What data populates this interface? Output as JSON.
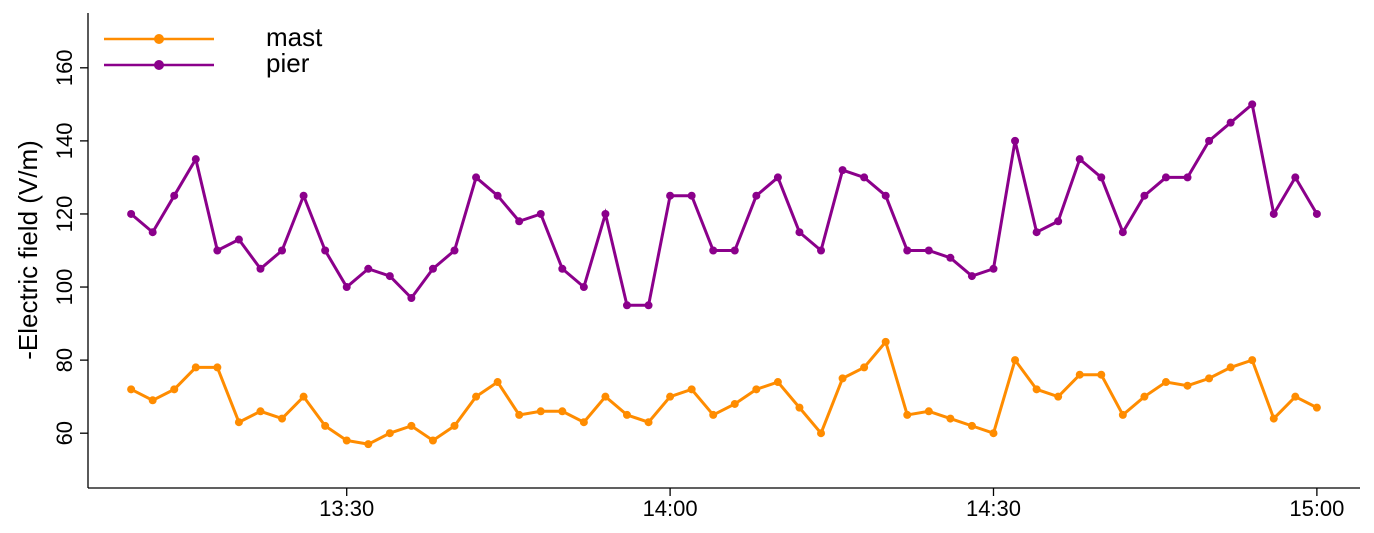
{
  "chart_data": {
    "type": "line",
    "ylabel": "-Electric field (V/m)",
    "x": [
      "13:10",
      "13:12",
      "13:14",
      "13:16",
      "13:18",
      "13:20",
      "13:22",
      "13:24",
      "13:26",
      "13:28",
      "13:30",
      "13:32",
      "13:34",
      "13:36",
      "13:38",
      "13:40",
      "13:42",
      "13:44",
      "13:46",
      "13:48",
      "13:50",
      "13:52",
      "13:54",
      "13:56",
      "13:58",
      "14:00",
      "14:02",
      "14:04",
      "14:06",
      "14:08",
      "14:10",
      "14:12",
      "14:14",
      "14:16",
      "14:18",
      "14:20",
      "14:22",
      "14:24",
      "14:26",
      "14:28",
      "14:30",
      "14:32",
      "14:34",
      "14:36",
      "14:38",
      "14:40",
      "14:42",
      "14:44",
      "14:46",
      "14:48",
      "14:50",
      "14:52",
      "14:54",
      "14:56",
      "14:58",
      "15:00"
    ],
    "series": [
      {
        "name": "mast",
        "color": "#ff8c00",
        "values": [
          72,
          69,
          72,
          78,
          78,
          63,
          66,
          64,
          70,
          62,
          58,
          57,
          60,
          62,
          58,
          62,
          70,
          74,
          65,
          66,
          66,
          63,
          70,
          65,
          63,
          70,
          72,
          65,
          68,
          72,
          74,
          67,
          60,
          75,
          78,
          85,
          65,
          66,
          64,
          62,
          60,
          80,
          72,
          70,
          76,
          76,
          65,
          70,
          74,
          73,
          75,
          78,
          80,
          64,
          70,
          67
        ]
      },
      {
        "name": "pier",
        "color": "#8b008b",
        "values": [
          120,
          115,
          125,
          135,
          110,
          113,
          105,
          110,
          125,
          110,
          100,
          105,
          103,
          97,
          105,
          110,
          130,
          125,
          118,
          120,
          105,
          100,
          120,
          95,
          95,
          125,
          125,
          110,
          110,
          125,
          130,
          115,
          110,
          132,
          130,
          125,
          110,
          110,
          108,
          103,
          105,
          140,
          115,
          118,
          135,
          130,
          115,
          125,
          130,
          130,
          140,
          145,
          150,
          120,
          130,
          120
        ]
      }
    ],
    "xlim": [
      "13:06",
      "15:04"
    ],
    "xticks": [
      "13:30",
      "14:00",
      "14:30",
      "15:00"
    ],
    "ylim": [
      45,
      175
    ],
    "yticks": [
      60,
      80,
      100,
      120,
      140,
      160
    ],
    "legend": "top-left"
  }
}
